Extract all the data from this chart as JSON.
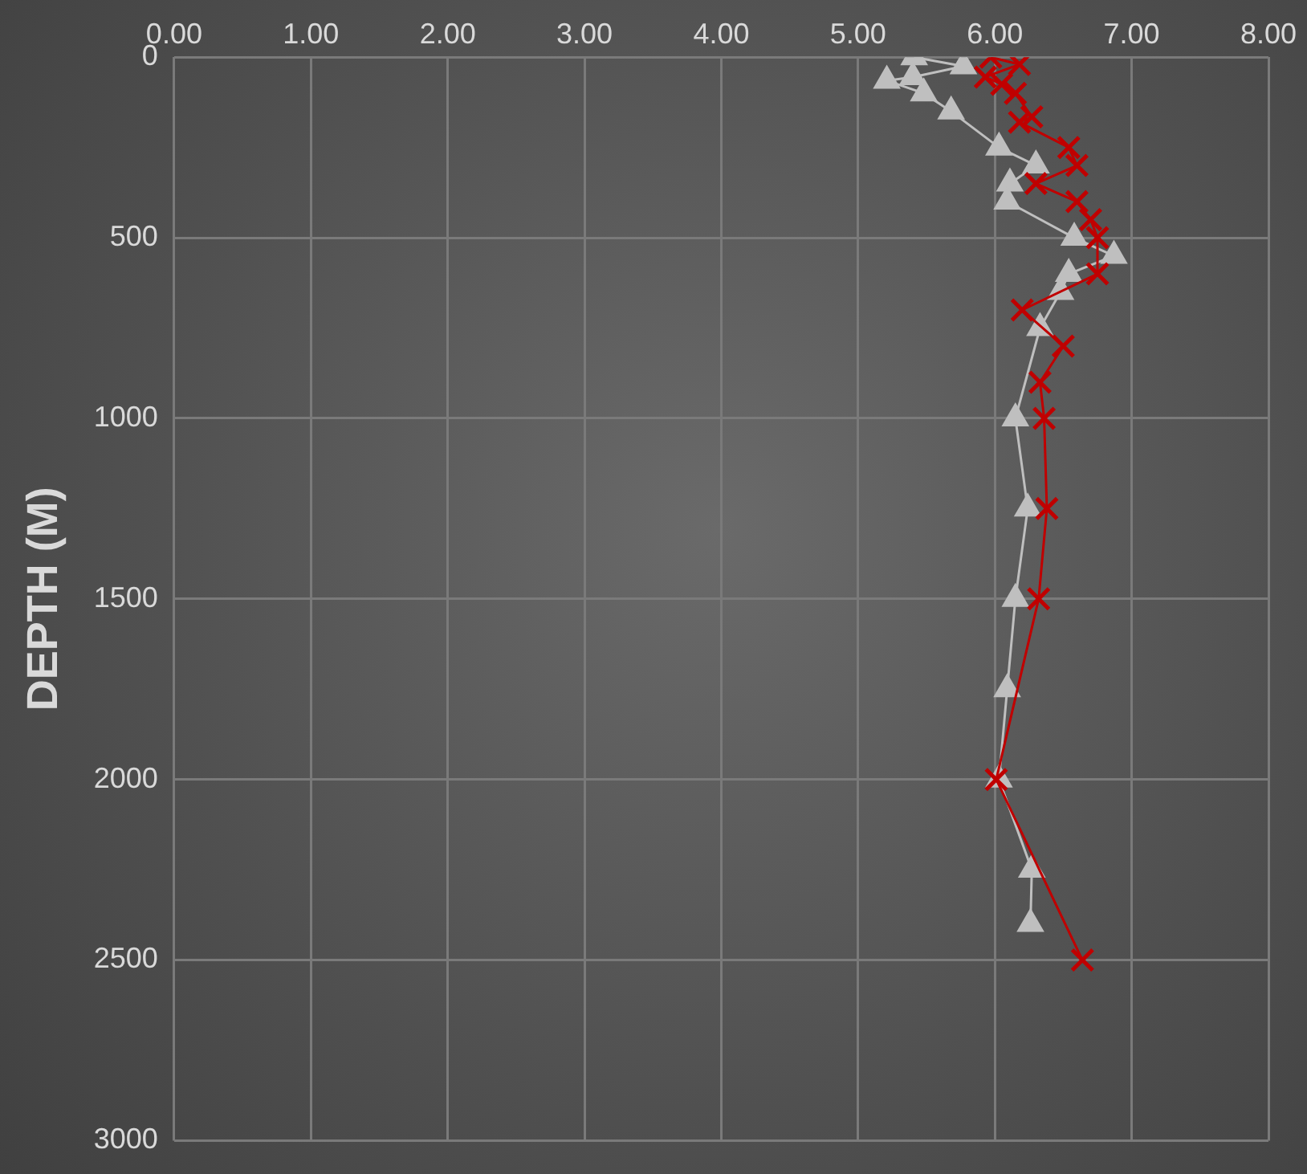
{
  "chart_data": {
    "type": "line",
    "ylabel": "DEPTH (M)",
    "xlim": [
      0,
      8
    ],
    "xticks": [
      {
        "value": 0,
        "label": "0.00"
      },
      {
        "value": 1,
        "label": "1.00"
      },
      {
        "value": 2,
        "label": "2.00"
      },
      {
        "value": 3,
        "label": "3.00"
      },
      {
        "value": 4,
        "label": "4.00"
      },
      {
        "value": 5,
        "label": "5.00"
      },
      {
        "value": 6,
        "label": "6.00"
      },
      {
        "value": 7,
        "label": "7.00"
      },
      {
        "value": 8,
        "label": "8.00"
      }
    ],
    "ylim": [
      3000,
      0
    ],
    "yticks": [
      0,
      500,
      1000,
      1500,
      2000,
      2500,
      3000
    ],
    "grid": true,
    "legend": false,
    "series": [
      {
        "color": "#bfbfbf",
        "marker": "triangle",
        "x": [
          5.41,
          5.77,
          5.4,
          5.21,
          5.48,
          5.68,
          6.03,
          6.3,
          6.11,
          6.09,
          6.58,
          6.87,
          6.54,
          6.48,
          6.33,
          6.15,
          6.24,
          6.15,
          6.09,
          6.03,
          6.27,
          6.26
        ],
        "values": [
          0,
          25,
          55,
          65,
          100,
          150,
          250,
          300,
          350,
          400,
          500,
          550,
          600,
          650,
          750,
          1000,
          1250,
          1500,
          1750,
          2000,
          2250,
          2400
        ]
      },
      {
        "color": "#c00000",
        "marker": "cross",
        "x": [
          5.97,
          6.18,
          5.93,
          6.05,
          6.15,
          6.27,
          6.18,
          6.54,
          6.6,
          6.3,
          6.6,
          6.7,
          6.75,
          6.75,
          6.2,
          6.5,
          6.33,
          6.36,
          6.38,
          6.32,
          6.01,
          6.64
        ],
        "values": [
          0,
          20,
          55,
          75,
          100,
          165,
          180,
          250,
          300,
          350,
          400,
          450,
          500,
          600,
          700,
          800,
          900,
          1000,
          1250,
          1500,
          2000,
          2500
        ]
      }
    ]
  }
}
